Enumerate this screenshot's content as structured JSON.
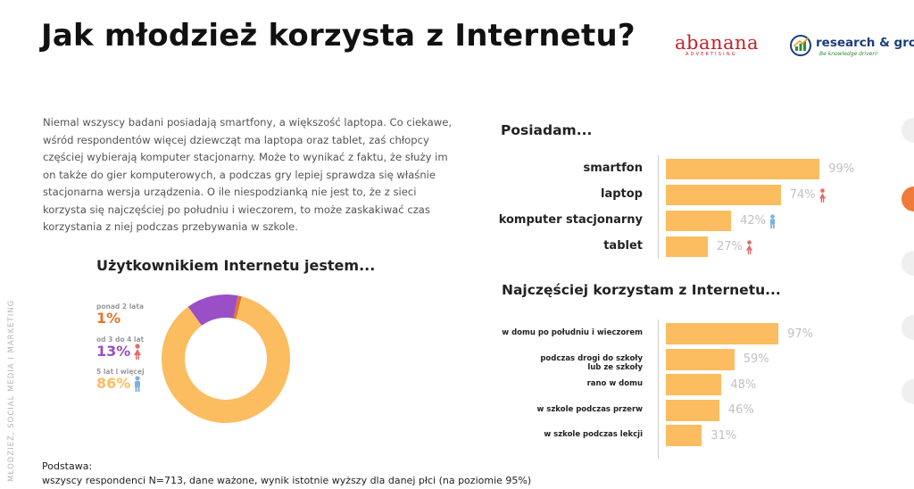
{
  "title": "Jak młodzież korzysta z Internetu?",
  "logos": {
    "abanana": "abanana",
    "abanana_sub": "ADVERTISING",
    "research": "research & grow",
    "research_tag": "Be knowledge driven!"
  },
  "side_label": "MŁODZIEŻ, SOCIAL MEDIA I MARKETING",
  "paragraph": "Niemal wszyscy badani posiadają smartfony, a większość laptopa. Co ciekawe, wśród respondentów więcej dziewcząt ma laptopa oraz tablet, zaś chłopcy częściej wybierają komputer stacjonarny. Może to wynikać z faktu, że służy im on także do gier komputerowych, a podczas gry lepiej sprawdza się właśnie stacjonarna wersja urządzenia. O ile niespodzianką nie jest to, że z sieci korzysta się najczęściej po południu i wieczorem, to może zaskakiwać czas korzystania z niej podczas przebywania w szkole.",
  "footer": {
    "heading": "Podstawa:",
    "text": "wszyscy respondenci N=713, dane ważone, wynik istotnie wyższy dla danej płci (na poziomie 95%)"
  },
  "colors": {
    "bar": "#fbbd5f",
    "female": "#e46a6a",
    "male": "#7fb2d9",
    "orange": "#e3752b",
    "purple": "#9a4fc7",
    "yellow": "#fbbd5f"
  },
  "chart_data": [
    {
      "type": "pie",
      "title": "Użytkownikiem Internetu jestem...",
      "categories": [
        "ponad 2 lata",
        "od 3 do 4 lat",
        "5 lat i więcej"
      ],
      "values": [
        1,
        13,
        86
      ],
      "labels": [
        "1%",
        "13%",
        "86%"
      ],
      "colors": [
        "#e3752b",
        "#9a4fc7",
        "#fbbd5f"
      ],
      "gender_icons": [
        "",
        "female",
        "male"
      ],
      "legend": "left"
    },
    {
      "type": "bar",
      "orientation": "horizontal",
      "title": "Posiadam...",
      "categories": [
        "smartfon",
        "laptop",
        "komputer stacjonarny",
        "tablet"
      ],
      "values": [
        99,
        74,
        42,
        27
      ],
      "labels": [
        "99%",
        "74%",
        "42%",
        "27%"
      ],
      "gender_icons": [
        "",
        "female",
        "male",
        "female"
      ],
      "xlim": [
        0,
        100
      ]
    },
    {
      "type": "bar",
      "orientation": "horizontal",
      "title": "Najczęściej korzystam z Internetu...",
      "categories": [
        "w domu po południu i wieczorem",
        "podczas drogi do szkoły\nlub ze szkoły",
        "rano w domu",
        "w szkole podczas przerw",
        "w szkole podczas lekcji"
      ],
      "values": [
        97,
        59,
        48,
        46,
        31
      ],
      "labels": [
        "97%",
        "59%",
        "48%",
        "46%",
        "31%"
      ],
      "xlim": [
        0,
        100
      ]
    }
  ]
}
